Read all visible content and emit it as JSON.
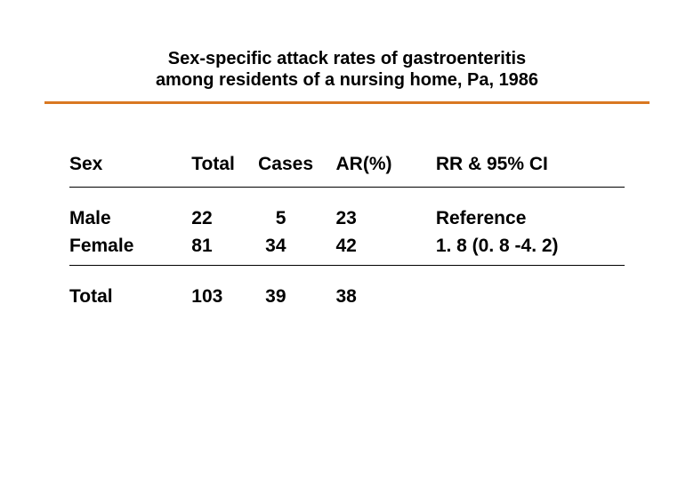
{
  "title": {
    "line1": "Sex-specific attack rates of gastroenteritis",
    "line2": "among residents of a nursing home, Pa, 1986",
    "rule_color": "#d97821",
    "fontsize": 20,
    "fontweight": 700
  },
  "table": {
    "type": "table",
    "font_family": "Verdana, sans-serif",
    "header_fontsize": 21,
    "body_fontsize": 21,
    "fontweight": 700,
    "text_color": "#000000",
    "section_rule_color": "#000000",
    "columns": [
      {
        "key": "sex",
        "label": "Sex",
        "width_pct": 22,
        "align": "left"
      },
      {
        "key": "total",
        "label": "Total",
        "width_pct": 12,
        "align": "left"
      },
      {
        "key": "cases",
        "label": "Cases",
        "width_pct": 14,
        "align": "left"
      },
      {
        "key": "ar",
        "label": "AR(%)",
        "width_pct": 18,
        "align": "left"
      },
      {
        "key": "rr",
        "label": "RR & 95% CI",
        "width_pct": 34,
        "align": "left"
      }
    ],
    "rows": [
      {
        "sex": "Male",
        "total": "22",
        "cases": "  5",
        "ar": "23",
        "rr": "Reference"
      },
      {
        "sex": "Female",
        "total": "81",
        "cases": "34",
        "ar": "42",
        "rr": "1. 8 (0. 8 -4. 2)"
      }
    ],
    "totals": {
      "sex": "Total",
      "total": "103",
      "cases": "39",
      "ar": "38",
      "rr": ""
    }
  },
  "background_color": "#ffffff"
}
